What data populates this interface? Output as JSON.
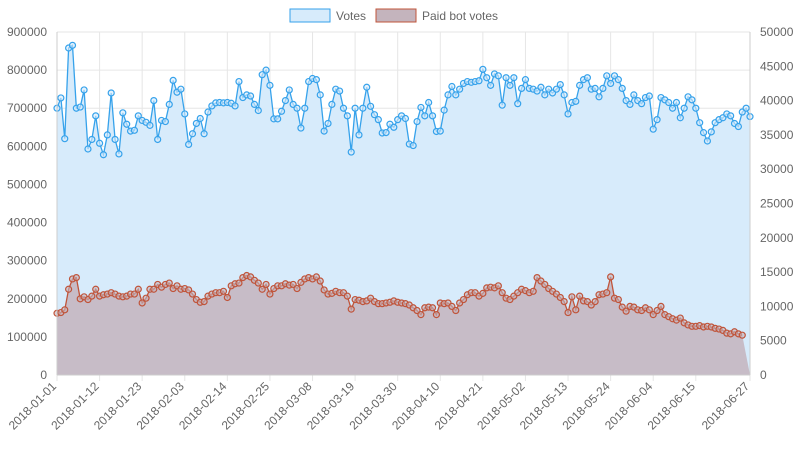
{
  "chart_data": {
    "type": "area",
    "legend": {
      "position": "top"
    },
    "grid": true,
    "series": [
      {
        "name": "Votes",
        "axis": "left",
        "color": "#36a2eb",
        "fill": "#d7ebfb",
        "values": [
          700000,
          727000,
          620000,
          858000,
          865000,
          700000,
          703000,
          748000,
          593000,
          618000,
          680000,
          608000,
          578000,
          630000,
          740000,
          618000,
          580000,
          688000,
          658000,
          640000,
          642000,
          680000,
          668000,
          663000,
          655000,
          720000,
          618000,
          668000,
          665000,
          710000,
          773000,
          742000,
          750000,
          685000,
          605000,
          633000,
          660000,
          673000,
          633000,
          690000,
          706000,
          714000,
          715000,
          714000,
          715000,
          713000,
          706000,
          770000,
          728000,
          735000,
          732000,
          710000,
          694000,
          788000,
          800000,
          760000,
          672000,
          672000,
          692000,
          720000,
          748000,
          710000,
          700000,
          648000,
          700000,
          770000,
          778000,
          775000,
          735000,
          640000,
          660000,
          710000,
          750000,
          745000,
          700000,
          680000,
          585000,
          700000,
          630000,
          700000,
          755000,
          705000,
          683000,
          670000,
          635000,
          636000,
          658000,
          650000,
          670000,
          680000,
          673000,
          606000,
          602000,
          665000,
          702000,
          680000,
          715000,
          680000,
          639000,
          640000,
          695000,
          735000,
          757000,
          735000,
          750000,
          765000,
          770000,
          768000,
          770000,
          772000,
          802000,
          780000,
          760000,
          790000,
          785000,
          708000,
          780000,
          760000,
          780000,
          712000,
          752000,
          775000,
          752000,
          750000,
          745000,
          755000,
          735000,
          750000,
          740000,
          750000,
          762000,
          735000,
          685000,
          715000,
          718000,
          760000,
          775000,
          780000,
          750000,
          752000,
          730000,
          752000,
          785000,
          765000,
          785000,
          775000,
          752000,
          720000,
          710000,
          735000,
          720000,
          712000,
          728000,
          732000,
          645000,
          670000,
          728000,
          722000,
          715000,
          700000,
          715000,
          675000,
          700000,
          730000,
          722000,
          700000,
          662000,
          636000,
          614000,
          638000,
          662000,
          670000,
          675000,
          685000,
          680000,
          660000,
          652000,
          690000,
          700000,
          678000
        ]
      },
      {
        "name": "Paid bot votes",
        "axis": "right",
        "color": "#c0543a",
        "fill": "#c4b4bd",
        "values": [
          9000,
          9100,
          9500,
          12500,
          14000,
          14200,
          11100,
          11400,
          11000,
          11500,
          12500,
          11500,
          11700,
          11800,
          12000,
          11800,
          11500,
          11400,
          11500,
          11800,
          11800,
          12500,
          10500,
          11200,
          12500,
          12500,
          13200,
          12800,
          13200,
          13400,
          12600,
          13000,
          12500,
          12600,
          12400,
          11800,
          11000,
          10600,
          10700,
          11500,
          11800,
          12000,
          12000,
          12200,
          11300,
          13000,
          13300,
          13400,
          14200,
          14500,
          14300,
          13800,
          13400,
          12500,
          13200,
          11800,
          12600,
          13000,
          13000,
          13300,
          13100,
          13200,
          12600,
          13500,
          14000,
          14200,
          14000,
          14300,
          13700,
          12400,
          11800,
          11900,
          12200,
          12000,
          12000,
          11500,
          9600,
          11000,
          10900,
          10700,
          10800,
          11200,
          10700,
          10400,
          10400,
          10500,
          10600,
          10800,
          10600,
          10500,
          10400,
          10200,
          9800,
          9400,
          8800,
          9800,
          9900,
          9800,
          8800,
          10500,
          10400,
          10500,
          10000,
          9400,
          10500,
          11000,
          11700,
          12000,
          12000,
          11500,
          11900,
          12700,
          12800,
          12700,
          13000,
          12000,
          11200,
          11000,
          11500,
          12000,
          12500,
          12300,
          12000,
          12200,
          14200,
          13700,
          13200,
          12600,
          12200,
          11800,
          11300,
          10700,
          9100,
          11400,
          9500,
          11500,
          10800,
          10700,
          10200,
          10700,
          11700,
          11800,
          12000,
          14300,
          11200,
          11000,
          9900,
          9300,
          10000,
          9900,
          9500,
          9400,
          9800,
          9500,
          8800,
          9400,
          10000,
          8800,
          8500,
          8200,
          8000,
          8300,
          7600,
          7300,
          7100,
          7100,
          7200,
          7000,
          7100,
          7000,
          6800,
          6700,
          6500,
          6100,
          6000,
          6300,
          6000,
          5800
        ]
      }
    ],
    "x": {
      "tick_labels": [
        "2018-01-01",
        "2018-01-12",
        "2018-01-23",
        "2018-02-03",
        "2018-02-14",
        "2018-02-25",
        "2018-03-08",
        "2018-03-19",
        "2018-03-30",
        "2018-04-10",
        "2018-04-21",
        "2018-05-02",
        "2018-05-13",
        "2018-05-24",
        "2018-06-04",
        "2018-06-15",
        "2018-06-27"
      ],
      "tick_every_days": 11
    },
    "y_left": {
      "min": 0,
      "max": 900000,
      "step": 100000,
      "tick_labels": [
        "0",
        "100000",
        "200000",
        "300000",
        "400000",
        "500000",
        "600000",
        "700000",
        "800000",
        "900000"
      ]
    },
    "y_right": {
      "min": 0,
      "max": 50000,
      "step": 5000,
      "tick_labels": [
        "0",
        "5000",
        "10000",
        "15000",
        "20000",
        "25000",
        "30000",
        "35000",
        "40000",
        "45000",
        "50000"
      ]
    }
  }
}
